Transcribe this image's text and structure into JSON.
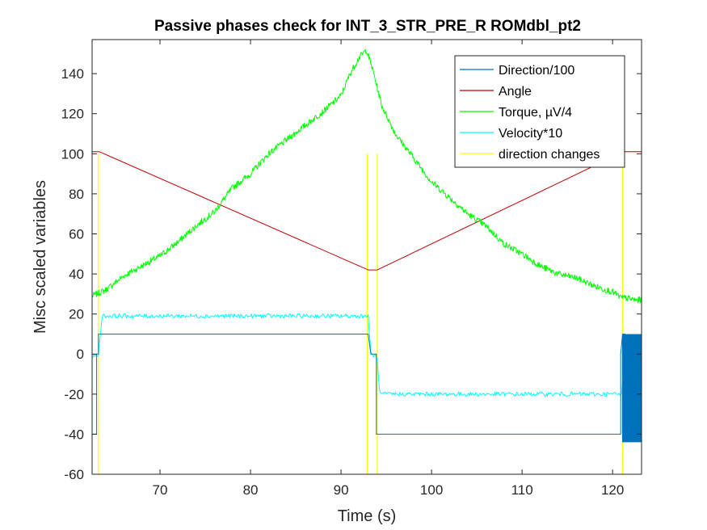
{
  "chart_data": {
    "type": "line",
    "title": "Passive phases check for INT_3_STR_PRE_R ROMdbl_pt2",
    "xlabel": "Time (s)",
    "ylabel": "Misc scaled variables",
    "xlim": [
      62.5,
      123.2
    ],
    "ylim": [
      -60,
      157
    ],
    "xticks": [
      70,
      80,
      90,
      100,
      110,
      120
    ],
    "xtick_labels": [
      "70",
      "80",
      "90",
      "100",
      "110",
      "120"
    ],
    "yticks": [
      -60,
      -40,
      -20,
      0,
      20,
      40,
      60,
      80,
      100,
      120,
      140
    ],
    "ytick_labels": [
      "-60",
      "-40",
      "-20",
      "0",
      "20",
      "40",
      "60",
      "80",
      "100",
      "120",
      "140"
    ],
    "legend_position": "top-right",
    "grid": false,
    "series": [
      {
        "name": "Direction/100",
        "color": "#0072BD",
        "x": [
          62.5,
          63.0,
          63.0,
          63.2,
          63.2,
          93.0,
          93.0,
          93.3,
          93.9,
          93.9,
          120.9,
          120.9,
          121.1,
          121.4
        ],
        "y": [
          -40,
          -40,
          0,
          0,
          10,
          10,
          10,
          0,
          0,
          -40,
          -40,
          0,
          10,
          10
        ]
      },
      {
        "name": "Angle",
        "color": "#C00000",
        "x": [
          62.5,
          63.3,
          93.0,
          94.0,
          121.2,
          123.2
        ],
        "y": [
          101,
          101,
          42,
          42,
          101,
          101
        ]
      },
      {
        "name": "Torque, µV/4",
        "color": "#00FF00",
        "x": [
          62.5,
          64,
          66,
          68,
          70,
          72,
          74,
          76,
          78,
          80,
          82,
          84,
          86,
          88,
          90,
          91,
          92,
          92.8,
          93.5,
          94.5,
          96,
          98,
          100,
          102,
          104,
          106,
          108,
          110,
          112,
          114,
          116,
          118,
          120,
          121,
          121.5,
          122.5,
          123.2
        ],
        "y": [
          29,
          32,
          39,
          44,
          49,
          56,
          64,
          71,
          83,
          90,
          100,
          107,
          114,
          121,
          129,
          140,
          148,
          152,
          142,
          124,
          110,
          98,
          86,
          78,
          70,
          64,
          55,
          50,
          44,
          40,
          38,
          34,
          31,
          28,
          28,
          27,
          27
        ]
      },
      {
        "name": "Velocity*10",
        "color": "#00FFFF",
        "x": [
          62.5,
          63.0,
          63.2,
          63.6,
          70,
          80,
          90,
          93.0,
          93.3,
          93.8,
          94.0,
          94.3,
          100,
          110,
          120,
          121.0,
          121.3,
          123.2
        ],
        "y": [
          -1,
          -1,
          0,
          19,
          19,
          19,
          19,
          19,
          0,
          -1,
          -3,
          -20,
          -20,
          -20,
          -20,
          -20,
          0,
          0
        ]
      },
      {
        "name": "direction changes",
        "color": "#FFFF00",
        "x_lines": [
          63.2,
          92.9,
          94.0,
          121.1
        ],
        "y_range": [
          -60,
          100
        ]
      }
    ]
  }
}
